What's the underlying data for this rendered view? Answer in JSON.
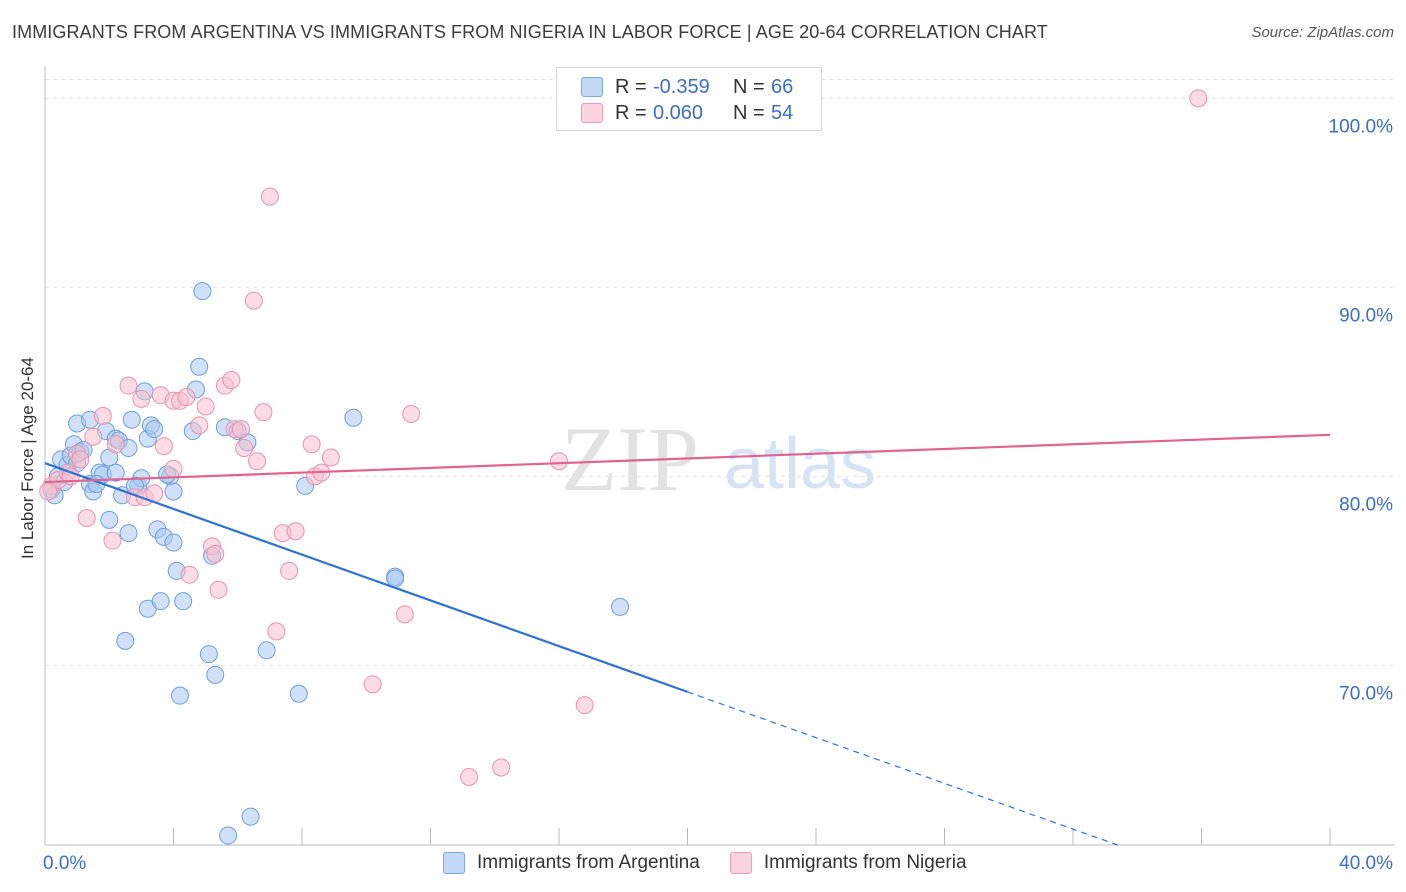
{
  "title": "IMMIGRANTS FROM ARGENTINA VS IMMIGRANTS FROM NIGERIA IN LABOR FORCE | AGE 20-64 CORRELATION CHART",
  "source": "Source: ZipAtlas.com",
  "watermark": {
    "zip": "ZIP",
    "atlas": "atlas"
  },
  "legend_top": [
    {
      "r_label": "R =",
      "r_value": "-0.359",
      "n_label": "N =",
      "n_value": "66",
      "color": "#a9c8f0"
    },
    {
      "r_label": "R =",
      "r_value": "0.060",
      "n_label": "N =",
      "n_value": "54",
      "color": "#f7bfd0"
    }
  ],
  "legend_bottom": [
    {
      "label": "Immigrants from Argentina",
      "color": "#a9c8f0"
    },
    {
      "label": "Immigrants from Nigeria",
      "color": "#f7bfd0"
    }
  ],
  "chart_data": {
    "type": "scatter",
    "title": "IMMIGRANTS FROM ARGENTINA VS IMMIGRANTS FROM NIGERIA IN LABOR FORCE | AGE 20-64 CORRELATION CHART",
    "xlabel": "",
    "ylabel": "In Labor Force | Age 20-64",
    "xlim": [
      0,
      40
    ],
    "ylim": [
      60.5,
      101.5
    ],
    "x_tick_labels": [
      "0.0%",
      "40.0%"
    ],
    "y_ticks": [
      70,
      80,
      90,
      100
    ],
    "y_tick_labels": [
      "70.0%",
      "80.0%",
      "90.0%",
      "100.0%"
    ],
    "grid": "horizontal dashed",
    "legend": "top-center and bottom",
    "series": [
      {
        "name": "Immigrants from Argentina",
        "color": "#a9c8f0",
        "stroke": "#6f9fd8",
        "points": [
          [
            0.2,
            79.3
          ],
          [
            0.4,
            80.0
          ],
          [
            0.5,
            80.9
          ],
          [
            0.7,
            80.6
          ],
          [
            0.8,
            81.1
          ],
          [
            0.9,
            81.7
          ],
          [
            1.0,
            80.7
          ],
          [
            1.1,
            81.3
          ],
          [
            1.0,
            82.8
          ],
          [
            1.4,
            83.0
          ],
          [
            1.4,
            79.6
          ],
          [
            1.5,
            79.2
          ],
          [
            1.7,
            80.2
          ],
          [
            1.8,
            80.1
          ],
          [
            1.9,
            82.4
          ],
          [
            2.0,
            81.0
          ],
          [
            2.0,
            77.7
          ],
          [
            2.2,
            80.2
          ],
          [
            2.2,
            82.0
          ],
          [
            2.3,
            81.9
          ],
          [
            2.4,
            79.0
          ],
          [
            2.6,
            81.5
          ],
          [
            2.6,
            77.0
          ],
          [
            2.7,
            83.0
          ],
          [
            2.9,
            79.5
          ],
          [
            3.0,
            79.9
          ],
          [
            3.1,
            84.5
          ],
          [
            3.2,
            82.0
          ],
          [
            3.3,
            82.7
          ],
          [
            3.4,
            82.5
          ],
          [
            3.5,
            77.2
          ],
          [
            3.7,
            76.8
          ],
          [
            3.9,
            80.0
          ],
          [
            4.0,
            76.5
          ],
          [
            4.0,
            79.2
          ],
          [
            4.1,
            75.0
          ],
          [
            4.3,
            73.4
          ],
          [
            4.6,
            82.4
          ],
          [
            4.7,
            84.6
          ],
          [
            4.8,
            85.8
          ],
          [
            4.9,
            89.8
          ],
          [
            5.1,
            70.6
          ],
          [
            5.2,
            75.8
          ],
          [
            5.3,
            69.5
          ],
          [
            5.6,
            82.6
          ],
          [
            6.0,
            82.4
          ],
          [
            6.3,
            81.8
          ],
          [
            6.9,
            70.8
          ],
          [
            7.9,
            68.5
          ],
          [
            8.1,
            79.5
          ],
          [
            9.6,
            83.1
          ],
          [
            10.9,
            74.7
          ],
          [
            10.9,
            74.6
          ],
          [
            17.9,
            73.1
          ],
          [
            3.2,
            73.0
          ],
          [
            3.6,
            73.4
          ],
          [
            2.5,
            71.3
          ],
          [
            4.2,
            68.4
          ],
          [
            6.4,
            62.0
          ],
          [
            5.7,
            61.0
          ],
          [
            1.2,
            81.4
          ],
          [
            0.6,
            79.7
          ],
          [
            1.6,
            79.6
          ],
          [
            0.3,
            79.0
          ],
          [
            2.8,
            79.5
          ],
          [
            3.8,
            80.1
          ]
        ]
      },
      {
        "name": "Immigrants from Nigeria",
        "color": "#f7bfd0",
        "stroke": "#e894af",
        "points": [
          [
            0.2,
            79.5
          ],
          [
            0.4,
            79.8
          ],
          [
            0.7,
            80.2
          ],
          [
            0.8,
            80.0
          ],
          [
            1.0,
            81.2
          ],
          [
            1.1,
            80.9
          ],
          [
            1.3,
            77.8
          ],
          [
            1.5,
            82.1
          ],
          [
            1.8,
            83.2
          ],
          [
            2.1,
            76.6
          ],
          [
            2.2,
            81.7
          ],
          [
            2.6,
            84.8
          ],
          [
            2.8,
            78.9
          ],
          [
            3.0,
            84.1
          ],
          [
            3.1,
            78.9
          ],
          [
            3.4,
            79.1
          ],
          [
            3.6,
            84.3
          ],
          [
            3.7,
            81.6
          ],
          [
            4.0,
            84.0
          ],
          [
            4.0,
            80.4
          ],
          [
            4.2,
            84.0
          ],
          [
            4.4,
            84.2
          ],
          [
            4.8,
            82.7
          ],
          [
            5.0,
            83.7
          ],
          [
            5.2,
            76.3
          ],
          [
            5.3,
            75.9
          ],
          [
            5.4,
            74.0
          ],
          [
            5.6,
            84.8
          ],
          [
            5.8,
            85.1
          ],
          [
            5.9,
            82.5
          ],
          [
            6.1,
            82.5
          ],
          [
            6.2,
            81.5
          ],
          [
            6.5,
            89.3
          ],
          [
            6.6,
            80.8
          ],
          [
            6.8,
            83.4
          ],
          [
            7.0,
            94.8
          ],
          [
            7.2,
            71.8
          ],
          [
            7.4,
            77.0
          ],
          [
            7.6,
            75.0
          ],
          [
            7.8,
            77.1
          ],
          [
            8.3,
            81.7
          ],
          [
            8.4,
            80.0
          ],
          [
            8.6,
            80.2
          ],
          [
            8.9,
            81.0
          ],
          [
            10.2,
            69.0
          ],
          [
            11.2,
            72.7
          ],
          [
            11.4,
            83.3
          ],
          [
            13.2,
            64.1
          ],
          [
            14.2,
            64.6
          ],
          [
            16.0,
            80.8
          ],
          [
            16.8,
            67.9
          ],
          [
            35.9,
            100.0
          ],
          [
            4.5,
            74.8
          ],
          [
            0.1,
            79.2
          ]
        ]
      }
    ],
    "trend_lines": [
      {
        "series": "Immigrants from Argentina",
        "color": "#2f72d2",
        "x_start": 0,
        "y_start": 80.7,
        "x_end": 20.0,
        "y_end": 68.6,
        "dashed_x_end": 40.0,
        "dashed_y_end": 56.5
      },
      {
        "series": "Immigrants from Nigeria",
        "color": "#e0648f",
        "x_start": 0,
        "y_start": 79.7,
        "x_end": 40.0,
        "y_end": 82.2
      }
    ]
  }
}
